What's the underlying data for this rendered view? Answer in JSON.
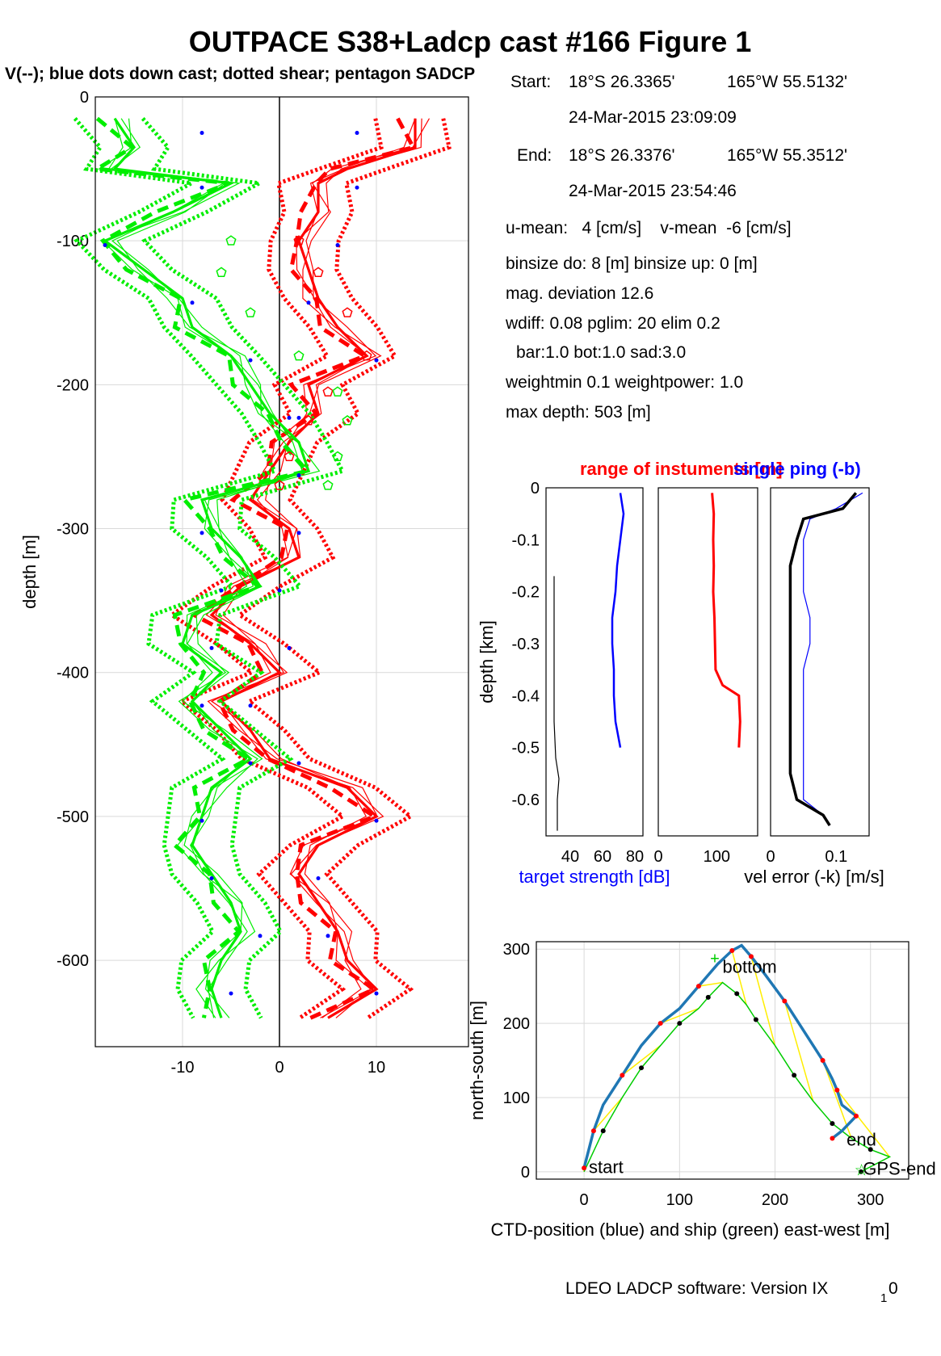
{
  "figure": {
    "title": "OUTPACE S38+Ladcp cast #166  Figure 1",
    "subtitle": "V(--); blue dots down cast; dotted shear; pentagon SADCP",
    "footer": "LDEO LADCP software: Version IX",
    "footer_sub": "1",
    "footer_tail": "0"
  },
  "info": {
    "start_label": "Start:",
    "start_lat": "18°S 26.3365'",
    "start_lon": "165°W 55.5132'",
    "start_time": "24-Mar-2015 23:09:09",
    "end_label": "End:",
    "end_lat": "18°S 26.3376'",
    "end_lon": "165°W 55.3512'",
    "end_time": "24-Mar-2015 23:54:46",
    "u_mean": "u-mean:   4 [cm/s]    v-mean  -6 [cm/s]",
    "binsize": "binsize do: 8 [m]  binsize up:  0 [m]",
    "mag": "mag. deviation 12.6",
    "wdiff": "wdiff: 0.08  pglim: 20  elim 0.2",
    "bar": "bar:1.0 bot:1.0 sad:3.0",
    "weight": "weightmin 0.1  weightpower: 1.0",
    "maxdepth": "max depth: 503 [m]"
  },
  "colors": {
    "u": "#ff0000",
    "v": "#00ee00",
    "down": "#0000ff",
    "track": "#1f77b4",
    "ship": "#00cc00",
    "link": "#ffee00"
  },
  "chart_data": [
    {
      "type": "line",
      "ylabel": "depth [m]",
      "xlim": [
        -19,
        19.5
      ],
      "ylim": [
        -660,
        0
      ],
      "xticks": [
        -10,
        0,
        10
      ],
      "yticks": [
        0,
        -100,
        -200,
        -300,
        -400,
        -500,
        -600
      ],
      "depth": [
        -15,
        -35,
        -50,
        -60,
        -80,
        -100,
        -120,
        -140,
        -160,
        -180,
        -200,
        -220,
        -240,
        -260,
        -280,
        -300,
        -320,
        -340,
        -360,
        -380,
        -400,
        -420,
        -440,
        -460,
        -480,
        -500,
        -520,
        -540,
        -560,
        -580,
        -600,
        -620,
        -640
      ],
      "series": [
        {
          "name": "U",
          "values": [
            14,
            14,
            7,
            4,
            4,
            2,
            3,
            4,
            6,
            9,
            3,
            4,
            1,
            -1,
            -3,
            1,
            2,
            -4,
            -7,
            -3,
            0,
            -6,
            -3,
            -1,
            7,
            10,
            4,
            2,
            4,
            6,
            7,
            10,
            5
          ]
        },
        {
          "name": "V",
          "values": [
            -17,
            -15,
            -17,
            -5,
            -11,
            -18,
            -14,
            -10,
            -9,
            -5,
            -3,
            -1,
            2,
            3,
            -8,
            -7,
            -4,
            -2,
            -9,
            -10,
            -6,
            -9,
            -6,
            -3,
            -7,
            -8,
            -9,
            -7,
            -5,
            -4,
            -6,
            -7,
            -6
          ]
        }
      ],
      "sadcp_depth": [
        -100,
        -122,
        -150,
        -180,
        -205,
        -225,
        -250,
        -270
      ],
      "sadcp_u": [
        2,
        4,
        7,
        9,
        5,
        3,
        1,
        0
      ],
      "sadcp_v": [
        -5,
        -6,
        -3,
        2,
        6,
        7,
        6,
        5
      ],
      "downcast_depth": [
        -25,
        -63,
        -103,
        -143,
        -183,
        -223,
        -263,
        -303,
        -343,
        -383,
        -423,
        -463,
        -503,
        -543,
        -583,
        -623
      ],
      "downcast_u": [
        8,
        8,
        6,
        3,
        10,
        2,
        2,
        2,
        0,
        1,
        -3,
        2,
        10,
        4,
        5,
        10
      ],
      "downcast_v": [
        -8,
        -8,
        -18,
        -9,
        -3,
        1,
        2,
        -8,
        -6,
        -7,
        -8,
        -3,
        -8,
        -7,
        -2,
        -5
      ]
    },
    {
      "type": "line",
      "title": "range of instuments [m]",
      "title2": "single ping (-b)",
      "ylabel": "depth [km]",
      "xlabel": "target strength [dB]",
      "xlabel2": "vel error (-k) [m/s]",
      "ylim": [
        -0.67,
        0
      ],
      "yticks": [
        0,
        -0.1,
        -0.2,
        -0.3,
        -0.4,
        -0.5,
        -0.6
      ],
      "panel1": {
        "xlim": [
          25,
          85
        ],
        "xticks": [
          40,
          60,
          80
        ],
        "depth": [
          -0.01,
          -0.05,
          -0.1,
          -0.15,
          -0.2,
          -0.25,
          -0.3,
          -0.35,
          -0.4,
          -0.45,
          -0.5
        ],
        "target_strength": [
          71,
          73,
          71,
          69,
          68,
          66,
          66,
          67,
          67,
          68,
          71
        ],
        "bot_depth": [
          -0.17,
          -0.3,
          -0.45,
          -0.52,
          -0.56,
          -0.6,
          -0.66
        ],
        "bot_values": [
          30,
          30,
          30,
          31,
          33,
          32,
          32
        ]
      },
      "panel2": {
        "xlim": [
          0,
          170
        ],
        "xticks": [
          0,
          100
        ],
        "depth": [
          -0.01,
          -0.05,
          -0.1,
          -0.15,
          -0.2,
          -0.25,
          -0.3,
          -0.35,
          -0.38,
          -0.4,
          -0.45,
          -0.5
        ],
        "range": [
          92,
          95,
          94,
          95,
          94,
          96,
          97,
          98,
          110,
          138,
          140,
          138
        ]
      },
      "panel3": {
        "xlim": [
          0,
          0.15
        ],
        "xticks": [
          0,
          0.1
        ],
        "depth": [
          -0.01,
          -0.04,
          -0.06,
          -0.1,
          -0.15,
          -0.2,
          -0.25,
          -0.3,
          -0.35,
          -0.4,
          -0.45,
          -0.5,
          -0.55,
          -0.6,
          -0.63,
          -0.65
        ],
        "vel_error": [
          0.13,
          0.11,
          0.05,
          0.04,
          0.03,
          0.03,
          0.03,
          0.03,
          0.03,
          0.03,
          0.03,
          0.03,
          0.03,
          0.04,
          0.08,
          0.09
        ],
        "single_ping": [
          0.14,
          0.1,
          0.06,
          0.05,
          0.05,
          0.05,
          0.06,
          0.06,
          0.05,
          0.05,
          0.05,
          0.05,
          0.05,
          0.05,
          0.08,
          0.09
        ]
      }
    },
    {
      "type": "line",
      "xlabel": "CTD-position (blue) and ship (green) east-west [m]",
      "ylabel": "north-south [m]",
      "xlim": [
        -50,
        340
      ],
      "ylim": [
        -10,
        310
      ],
      "xticks": [
        0,
        100,
        200,
        300
      ],
      "yticks": [
        0,
        100,
        200,
        300
      ],
      "ctd_x": [
        0,
        5,
        10,
        20,
        40,
        60,
        80,
        100,
        120,
        140,
        155,
        165,
        175,
        190,
        210,
        230,
        250,
        260,
        265,
        270,
        285,
        270,
        260
      ],
      "ctd_y": [
        5,
        30,
        55,
        90,
        130,
        170,
        200,
        220,
        250,
        280,
        298,
        305,
        290,
        265,
        230,
        190,
        150,
        125,
        110,
        90,
        75,
        55,
        45
      ],
      "ship_x": [
        0,
        20,
        40,
        60,
        80,
        100,
        120,
        130,
        145,
        160,
        170,
        180,
        200,
        220,
        240,
        260,
        280,
        300,
        320,
        290
      ],
      "ship_y": [
        0,
        55,
        100,
        140,
        170,
        200,
        220,
        235,
        255,
        240,
        225,
        205,
        170,
        130,
        95,
        65,
        45,
        30,
        20,
        0
      ],
      "labels": [
        "start",
        "bottom",
        "end",
        "GPS-end"
      ]
    }
  ]
}
